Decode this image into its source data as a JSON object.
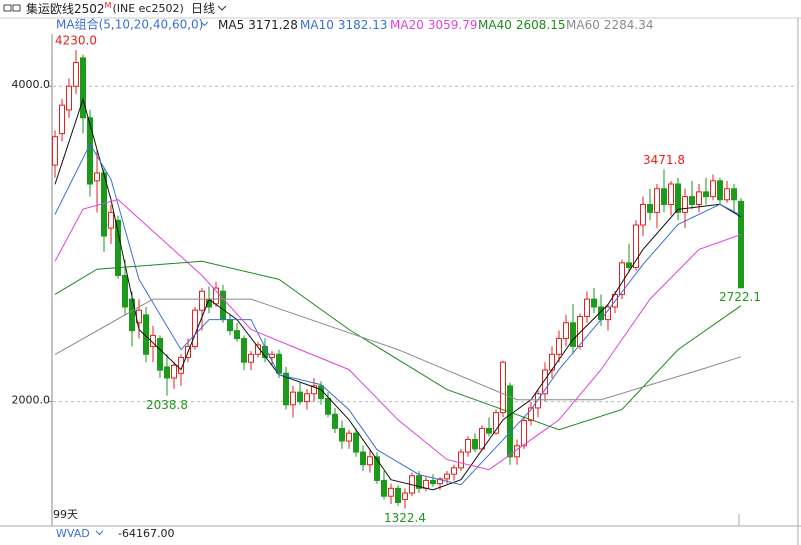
{
  "chart_data": {
    "type": "candlestick",
    "title": "集运欧线2502",
    "title_sup": "M",
    "subtitle": "(INE ec2502)",
    "period": "日线",
    "ma_group": "MA组合(5,10,20,40,60,0)",
    "range_label": "99天",
    "indicator_name": "WVAD",
    "indicator_readout": "-64167.00",
    "up_color": "#e8201c",
    "down_color": "#1c9a1c",
    "grid": true,
    "ylim": [
      1300,
      4420
    ],
    "yticks": [
      {
        "value": 4000,
        "label": "4000.0"
      },
      {
        "value": 2000,
        "label": "2000.0"
      }
    ],
    "open": [
      3500,
      3700,
      3850,
      4000,
      4180,
      3800,
      3400,
      3450,
      3100,
      3150,
      2800,
      2650,
      2500,
      2550,
      2350,
      2400,
      2220,
      2150,
      2180,
      2280,
      2350,
      2580,
      2650,
      2620,
      2700,
      2520,
      2450,
      2400,
      2250,
      2300,
      2350,
      2280,
      2300,
      2180,
      1980,
      2060,
      2000,
      2050,
      2100,
      2020,
      1920,
      1830,
      1750,
      1800,
      1680,
      1600,
      1650,
      1500,
      1400,
      1450,
      1380,
      1420,
      1530,
      1450,
      1500,
      1480,
      1510,
      1540,
      1580,
      1680,
      1760,
      1700,
      1830,
      1800,
      1930,
      2100,
      1650,
      1720,
      1880,
      1960,
      2050,
      2200,
      2300,
      2400,
      2500,
      2350,
      2540,
      2650,
      2600,
      2520,
      2600,
      2680,
      2880,
      2850,
      3120,
      3250,
      3200,
      3350,
      3250,
      3380,
      3200,
      3300,
      3250,
      3330,
      3300,
      3400,
      3280,
      3350,
      3270
    ],
    "high": [
      3720,
      3920,
      4050,
      4230,
      4200,
      3850,
      3600,
      3480,
      3250,
      3180,
      2900,
      2700,
      2650,
      2600,
      2480,
      2420,
      2300,
      2250,
      2300,
      2400,
      2600,
      2720,
      2730,
      2760,
      2740,
      2550,
      2500,
      2420,
      2320,
      2380,
      2400,
      2320,
      2330,
      2220,
      2100,
      2120,
      2080,
      2150,
      2130,
      2060,
      1960,
      1880,
      1820,
      1830,
      1720,
      1700,
      1680,
      1560,
      1480,
      1470,
      1450,
      1550,
      1560,
      1520,
      1540,
      1520,
      1560,
      1600,
      1700,
      1780,
      1800,
      1850,
      1900,
      1950,
      2260,
      2120,
      1760,
      1900,
      2000,
      2080,
      2250,
      2350,
      2450,
      2550,
      2620,
      2560,
      2700,
      2720,
      2680,
      2620,
      2700,
      2900,
      3000,
      3150,
      3300,
      3350,
      3380,
      3471.8,
      3400,
      3420,
      3350,
      3400,
      3380,
      3420,
      3440,
      3420,
      3400,
      3380,
      3290
    ],
    "low": [
      3420,
      3650,
      3800,
      3950,
      3700,
      3300,
      3200,
      2950,
      3000,
      2780,
      2550,
      2350,
      2400,
      2250,
      2250,
      2150,
      2038.8,
      2080,
      2100,
      2250,
      2330,
      2450,
      2560,
      2600,
      2500,
      2420,
      2380,
      2200,
      2200,
      2280,
      2250,
      2230,
      2150,
      1950,
      1900,
      1980,
      1950,
      2000,
      1980,
      1900,
      1800,
      1700,
      1700,
      1650,
      1560,
      1550,
      1480,
      1380,
      1350,
      1340,
      1322.4,
      1400,
      1420,
      1430,
      1460,
      1440,
      1480,
      1500,
      1560,
      1650,
      1680,
      1690,
      1780,
      1790,
      1900,
      1600,
      1600,
      1700,
      1850,
      1900,
      2000,
      2150,
      2250,
      2350,
      2300,
      2330,
      2500,
      2560,
      2480,
      2450,
      2560,
      2650,
      2820,
      2830,
      3050,
      3150,
      3100,
      3200,
      3180,
      3150,
      3100,
      3220,
      3200,
      3250,
      3280,
      3250,
      3260,
      3200,
      2722.1
    ],
    "close": [
      3680,
      3880,
      4000,
      4150,
      3800,
      3380,
      3450,
      3050,
      3200,
      2800,
      2600,
      2450,
      2580,
      2300,
      2420,
      2200,
      2150,
      2230,
      2280,
      2350,
      2580,
      2700,
      2600,
      2720,
      2520,
      2450,
      2400,
      2250,
      2300,
      2360,
      2280,
      2300,
      2180,
      1980,
      2060,
      2000,
      2050,
      2100,
      2020,
      1920,
      1830,
      1750,
      1800,
      1680,
      1600,
      1650,
      1500,
      1400,
      1450,
      1360,
      1420,
      1530,
      1450,
      1500,
      1480,
      1510,
      1540,
      1580,
      1680,
      1760,
      1700,
      1830,
      1800,
      1930,
      2250,
      1650,
      1720,
      1880,
      1960,
      2050,
      2200,
      2300,
      2400,
      2500,
      2350,
      2540,
      2650,
      2600,
      2520,
      2600,
      2680,
      2880,
      2850,
      3120,
      3250,
      3200,
      3350,
      3250,
      3380,
      3200,
      3300,
      3250,
      3330,
      3300,
      3400,
      3280,
      3350,
      3280,
      2722.1
    ],
    "series": [
      {
        "name": "MA5",
        "color": "#111111",
        "x": [
          0,
          4,
          8,
          12,
          18,
          22,
          26,
          32,
          38,
          42,
          48,
          54,
          58,
          64,
          68,
          74,
          79,
          84,
          89,
          95,
          98
        ],
        "values": [
          3378,
          3917,
          3282,
          2457,
          2203,
          2648,
          2520,
          2171,
          2076,
          1885,
          1505,
          1441,
          1505,
          1885,
          2012,
          2394,
          2616,
          2965,
          3219,
          3251,
          3171.28
        ]
      },
      {
        "name": "MA10",
        "color": "#3a6fd8",
        "x": [
          0,
          5,
          8,
          12,
          18,
          22,
          28,
          32,
          38,
          42,
          46,
          52,
          58,
          64,
          68,
          72,
          78,
          84,
          89,
          95,
          98
        ],
        "values": [
          3187,
          3632,
          3410,
          2775,
          2330,
          2520,
          2520,
          2171,
          2108,
          1949,
          1695,
          1537,
          1473,
          1758,
          1949,
          2203,
          2520,
          2870,
          3124,
          3251,
          3182.13
        ]
      },
      {
        "name": "MA20",
        "color": "#e040e0",
        "x": [
          0,
          4,
          9,
          21,
          28,
          35,
          42,
          49,
          56,
          62,
          66,
          72,
          78,
          85,
          92,
          98
        ],
        "values": [
          2890,
          3220,
          3282,
          2800,
          2457,
          2330,
          2203,
          1885,
          1632,
          1568,
          1695,
          1885,
          2203,
          2650,
          2965,
          3059.79
        ]
      },
      {
        "name": "MA40",
        "color": "#1a8a1a",
        "x": [
          0,
          6,
          21,
          32,
          42,
          56,
          64,
          72,
          81,
          89,
          98
        ],
        "values": [
          2680,
          2840,
          2890,
          2775,
          2457,
          2076,
          1949,
          1822,
          1950,
          2330,
          2608.15
        ]
      },
      {
        "name": "MA60",
        "color": "#8a8a8a",
        "x": [
          0,
          14,
          28,
          49,
          66,
          78,
          92,
          98
        ],
        "values": [
          2298,
          2650,
          2650,
          2330,
          2012,
          2012,
          2200,
          2284.34
        ]
      }
    ],
    "annotations": [
      {
        "label": "4230.0",
        "value": 4230,
        "color": "#e8201c"
      },
      {
        "label": "3471.8",
        "value": 3471.8,
        "color": "#e8201c"
      },
      {
        "label": "2722.1",
        "value": 2722.1,
        "color": "#1c9a1c"
      },
      {
        "label": "2038.8",
        "value": 2038.8,
        "color": "#1c9a1c"
      },
      {
        "label": "1322.4",
        "value": 1322.4,
        "color": "#1c9a1c"
      }
    ]
  }
}
